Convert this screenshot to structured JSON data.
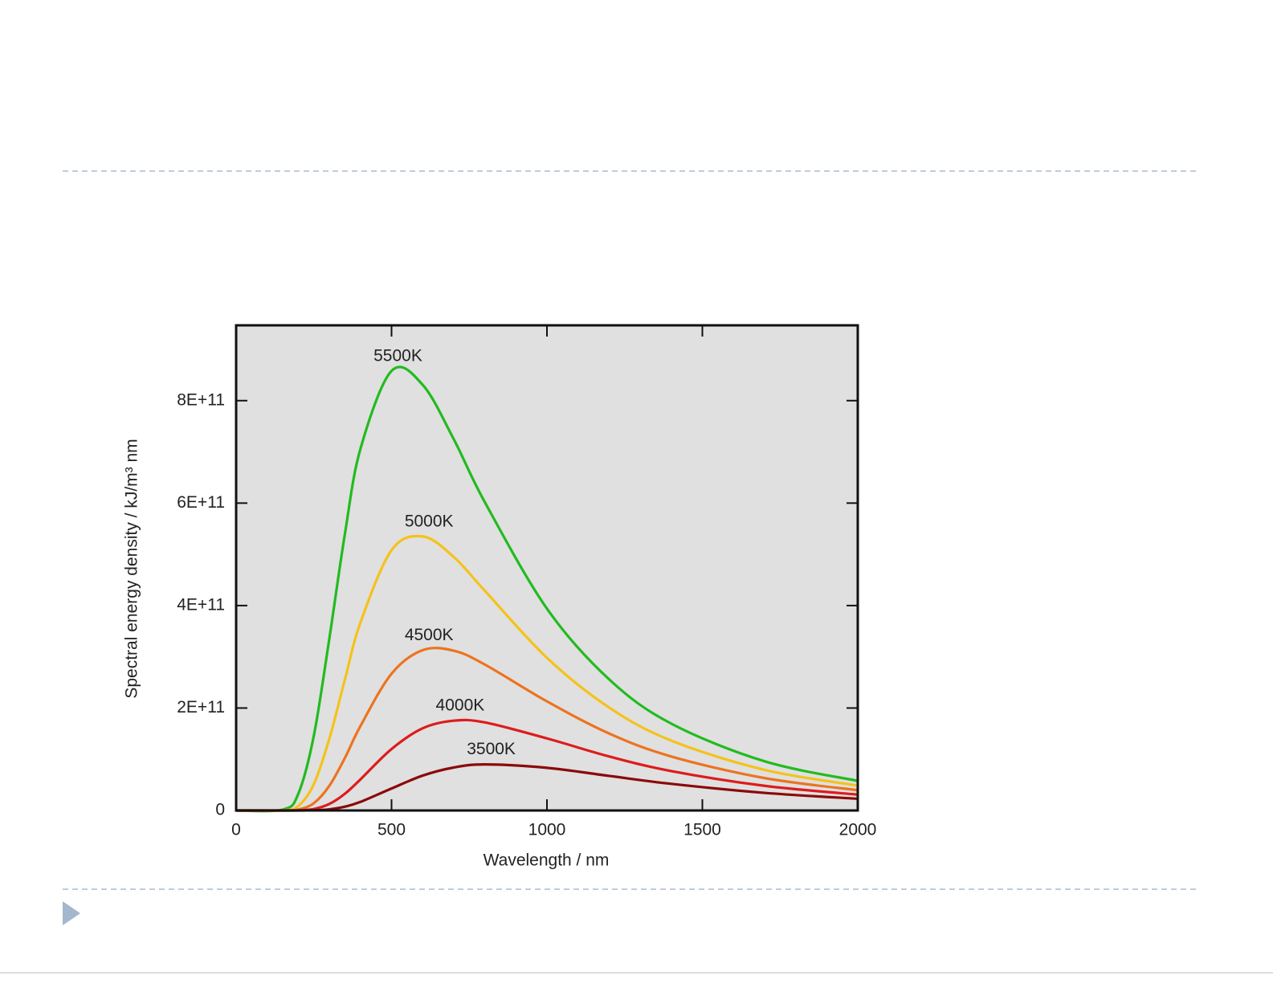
{
  "chart_data": {
    "type": "line",
    "xlabel": "Wavelength / nm",
    "ylabel": "Spectral energy density / kJ/m³ nm",
    "x": [
      0,
      150,
      200,
      250,
      300,
      350,
      400,
      500,
      600,
      700,
      800,
      1000,
      1200,
      1400,
      1700,
      2000
    ],
    "series": [
      {
        "name": "5500K",
        "color": "#22bb1f",
        "values": [
          0,
          1750000000.0,
          32600000000.0,
          146000000000.0,
          336000000000.0,
          540000000000.0,
          706000000000.0,
          858000000000.0,
          831000000000.0,
          725000000000.0,
          602000000000.0,
          394000000000.0,
          256000000000.0,
          169500000000.0,
          96100000000.0,
          57800000000.0
        ]
      },
      {
        "name": "5000K",
        "color": "#f5c21b",
        "values": [
          0,
          308000000.0,
          8800000000.0,
          51300000000.0,
          140300000000.0,
          255600000000.0,
          367000000000.0,
          508000000000.0,
          535000000000.0,
          495000000000.0,
          429000000000.0,
          298000000000.0,
          201000000000.0,
          136400000000.0,
          79300000000.0,
          48500000000.0
        ]
      },
      {
        "name": "4500K",
        "color": "#ec7420",
        "values": [
          0,
          36400000.0,
          1780000000.0,
          14280000000.0,
          48300000000.0,
          102600000000.0,
          164900000000.0,
          267000000000.0,
          313000000000.0,
          312000000000.0,
          285000000000.0,
          213000000000.0,
          150300000000.0,
          105400000000.0,
          63300000000.0,
          39600000000.0
        ]
      },
      {
        "name": "4000K",
        "color": "#dd1c1c",
        "values": [
          0,
          2530000.0,
          241000000.0,
          2880000000.0,
          12760000000.0,
          32700000000.0,
          60700000000.0,
          120000000000.0,
          160400000000.0,
          175300000000.0,
          171900000000.0,
          140700000000.0,
          105500000000.0,
          77000000000.0,
          48200000000.0,
          31000000000.0
        ]
      },
      {
        "name": "3500K",
        "color": "#8b0a0a",
        "values": [
          0,
          82000.0,
          18500000.0,
          370000000.0,
          2300000000.0,
          7540000000.0,
          16790000000.0,
          42900000000.0,
          68100000000.0,
          83900000000.0,
          89900000000.0,
          83300000000.0,
          67500000000.0,
          52000000000.0,
          34400000000.0,
          22900000000.0
        ]
      }
    ],
    "xlim": [
      0,
      2000
    ],
    "xticks": [
      0,
      500,
      1000,
      1500,
      2000
    ],
    "ylim": [
      0,
      947000000000.0
    ],
    "yticks": [
      0,
      {
        "value": 200000000000.0,
        "label": "2E+11"
      },
      {
        "value": 400000000000.0,
        "label": "4E+11"
      },
      {
        "value": 600000000000.0,
        "label": "6E+11"
      },
      {
        "value": 800000000000.0,
        "label": "8E+11"
      }
    ],
    "background": "#e0e0e0",
    "grid": false
  }
}
